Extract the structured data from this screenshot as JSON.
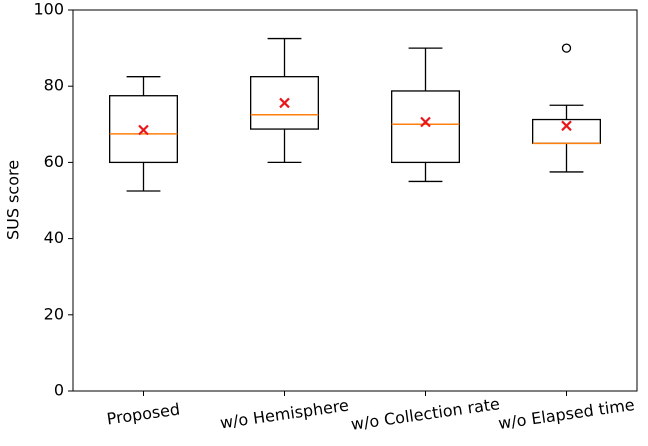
{
  "chart_data": {
    "type": "box",
    "y_label": "SUS score",
    "categories": [
      "Proposed",
      "w/o Hemisphere",
      "w/o Collection rate",
      "w/o Elapsed time"
    ],
    "boxes": [
      {
        "whislo": 52.5,
        "q1": 60,
        "median": 67.5,
        "q3": 77.5,
        "whishi": 82.5,
        "mean": 68.5,
        "fliers": []
      },
      {
        "whislo": 60,
        "q1": 68.75,
        "median": 72.5,
        "q3": 82.5,
        "whishi": 92.5,
        "mean": 75.6,
        "fliers": []
      },
      {
        "whislo": 55,
        "q1": 60,
        "median": 70,
        "q3": 78.75,
        "whishi": 90,
        "mean": 70.6,
        "fliers": []
      },
      {
        "whislo": 57.5,
        "q1": 65,
        "median": 65,
        "q3": 71.25,
        "whishi": 75,
        "mean": 69.6,
        "fliers": [
          90
        ]
      }
    ],
    "box_color": "#000000",
    "median_color": "#ff7f0e",
    "mean_color": "#e8171b",
    "ylim": [
      0,
      100
    ],
    "yticks": [
      0,
      20,
      40,
      60,
      80,
      100
    ],
    "grid": false
  }
}
